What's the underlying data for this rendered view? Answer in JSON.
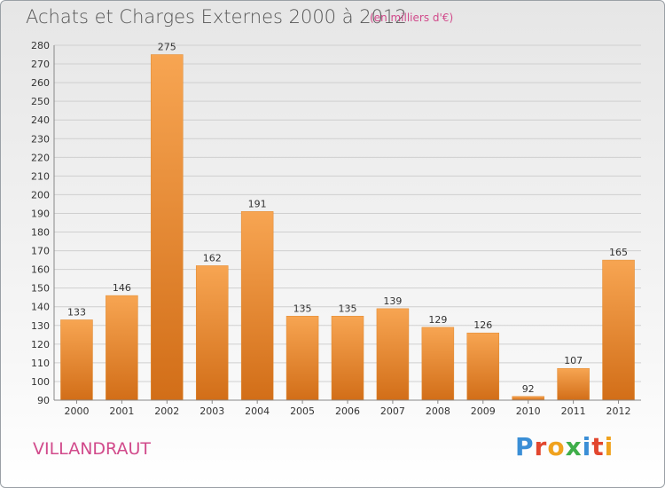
{
  "header": {
    "title": "Achats et Charges Externes 2000 à 2012",
    "subtitle": "(en milliers d'€)"
  },
  "footer": {
    "commune": "VILLANDRAUT",
    "brand": "Proxiti"
  },
  "colors": {
    "bar_light": "#f7a552",
    "bar_dark": "#d26e18",
    "accent": "#d14a8b",
    "grid": "#cfcfcf"
  },
  "chart_data": {
    "type": "bar",
    "title": "Achats et Charges Externes 2000 à 2012",
    "subtitle": "(en milliers d'€)",
    "xlabel": "",
    "ylabel": "",
    "categories": [
      "2000",
      "2001",
      "2002",
      "2003",
      "2004",
      "2005",
      "2006",
      "2007",
      "2008",
      "2009",
      "2010",
      "2011",
      "2012"
    ],
    "values": [
      133,
      146,
      275,
      162,
      191,
      135,
      135,
      139,
      129,
      126,
      92,
      107,
      165
    ],
    "ylim": [
      90,
      280
    ],
    "yticks": [
      90,
      100,
      110,
      120,
      130,
      140,
      150,
      160,
      170,
      180,
      190,
      200,
      210,
      220,
      230,
      240,
      250,
      260,
      270,
      280
    ],
    "grid": true,
    "legend": "none"
  }
}
